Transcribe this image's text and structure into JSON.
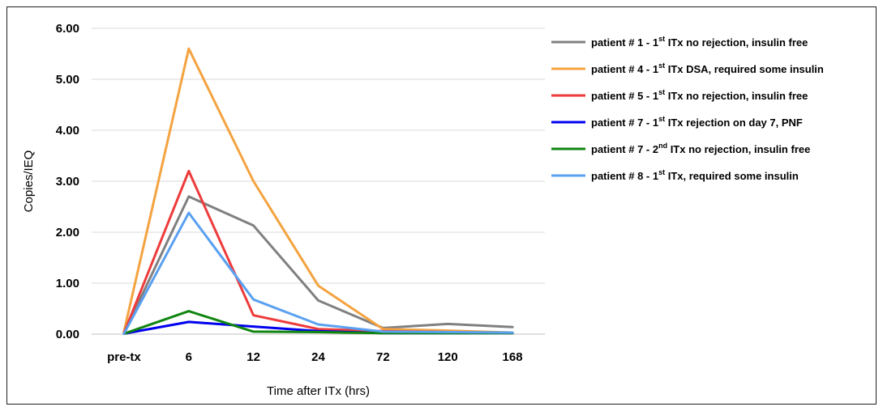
{
  "chart_data": {
    "type": "line",
    "xlabel": "Time after ITx (hrs)",
    "ylabel": "Copies/IEQ",
    "ylim": [
      0,
      6
    ],
    "yticks": [
      "0.00",
      "1.00",
      "2.00",
      "3.00",
      "4.00",
      "5.00",
      "6.00"
    ],
    "categories": [
      "pre-tx",
      "6",
      "12",
      "24",
      "72",
      "120",
      "168"
    ],
    "grid": "horizontal",
    "legend_position": "right",
    "series": [
      {
        "name": "patient # 1 - 1st ITx no rejection, insulin free",
        "legend": {
          "pre": "patient # 1 - 1",
          "sup": "st",
          "post": " ITx no rejection, insulin free"
        },
        "color": "#808080",
        "values": [
          0.02,
          2.7,
          2.13,
          0.66,
          0.12,
          0.2,
          0.14
        ]
      },
      {
        "name": "patient # 4 - 1st ITx DSA, required some insulin",
        "legend": {
          "pre": "patient # 4 - 1",
          "sup": "st",
          "post": " ITx DSA, required some insulin"
        },
        "color": "#F4A340",
        "values": [
          0.05,
          5.6,
          3.0,
          0.95,
          0.1,
          0.07,
          0.03
        ]
      },
      {
        "name": "patient # 5 - 1st ITx no rejection, insulin free",
        "legend": {
          "pre": "patient # 5 - 1",
          "sup": "st",
          "post": " ITx no rejection, insulin free"
        },
        "color": "#EE3B3B",
        "values": [
          0.02,
          3.2,
          0.37,
          0.1,
          0.06,
          0.04,
          0.02
        ]
      },
      {
        "name": "patient # 7 - 1st ITx rejection on day 7, PNF",
        "legend": {
          "pre": "patient # 7 - 1",
          "sup": "st",
          "post": " ITx rejection on day 7, PNF"
        },
        "color": "#0000EE",
        "values": [
          0.01,
          0.24,
          0.15,
          0.06,
          0.02,
          0.02,
          0.02
        ]
      },
      {
        "name": "patient # 7 - 2nd ITx no rejection, insulin free",
        "legend": {
          "pre": "patient # 7 - 2",
          "sup": "nd",
          "post": " ITx no rejection, insulin free"
        },
        "color": "#108510",
        "values": [
          0.01,
          0.45,
          0.05,
          0.04,
          0.02,
          0.02,
          0.02
        ]
      },
      {
        "name": "patient # 8 - 1st ITx, required some insulin",
        "legend": {
          "pre": "patient # 8 - 1",
          "sup": "st",
          "post": " ITx, required some insulin"
        },
        "color": "#5AA0F0",
        "values": [
          0.01,
          2.38,
          0.68,
          0.19,
          0.05,
          0.04,
          0.03
        ]
      }
    ]
  }
}
